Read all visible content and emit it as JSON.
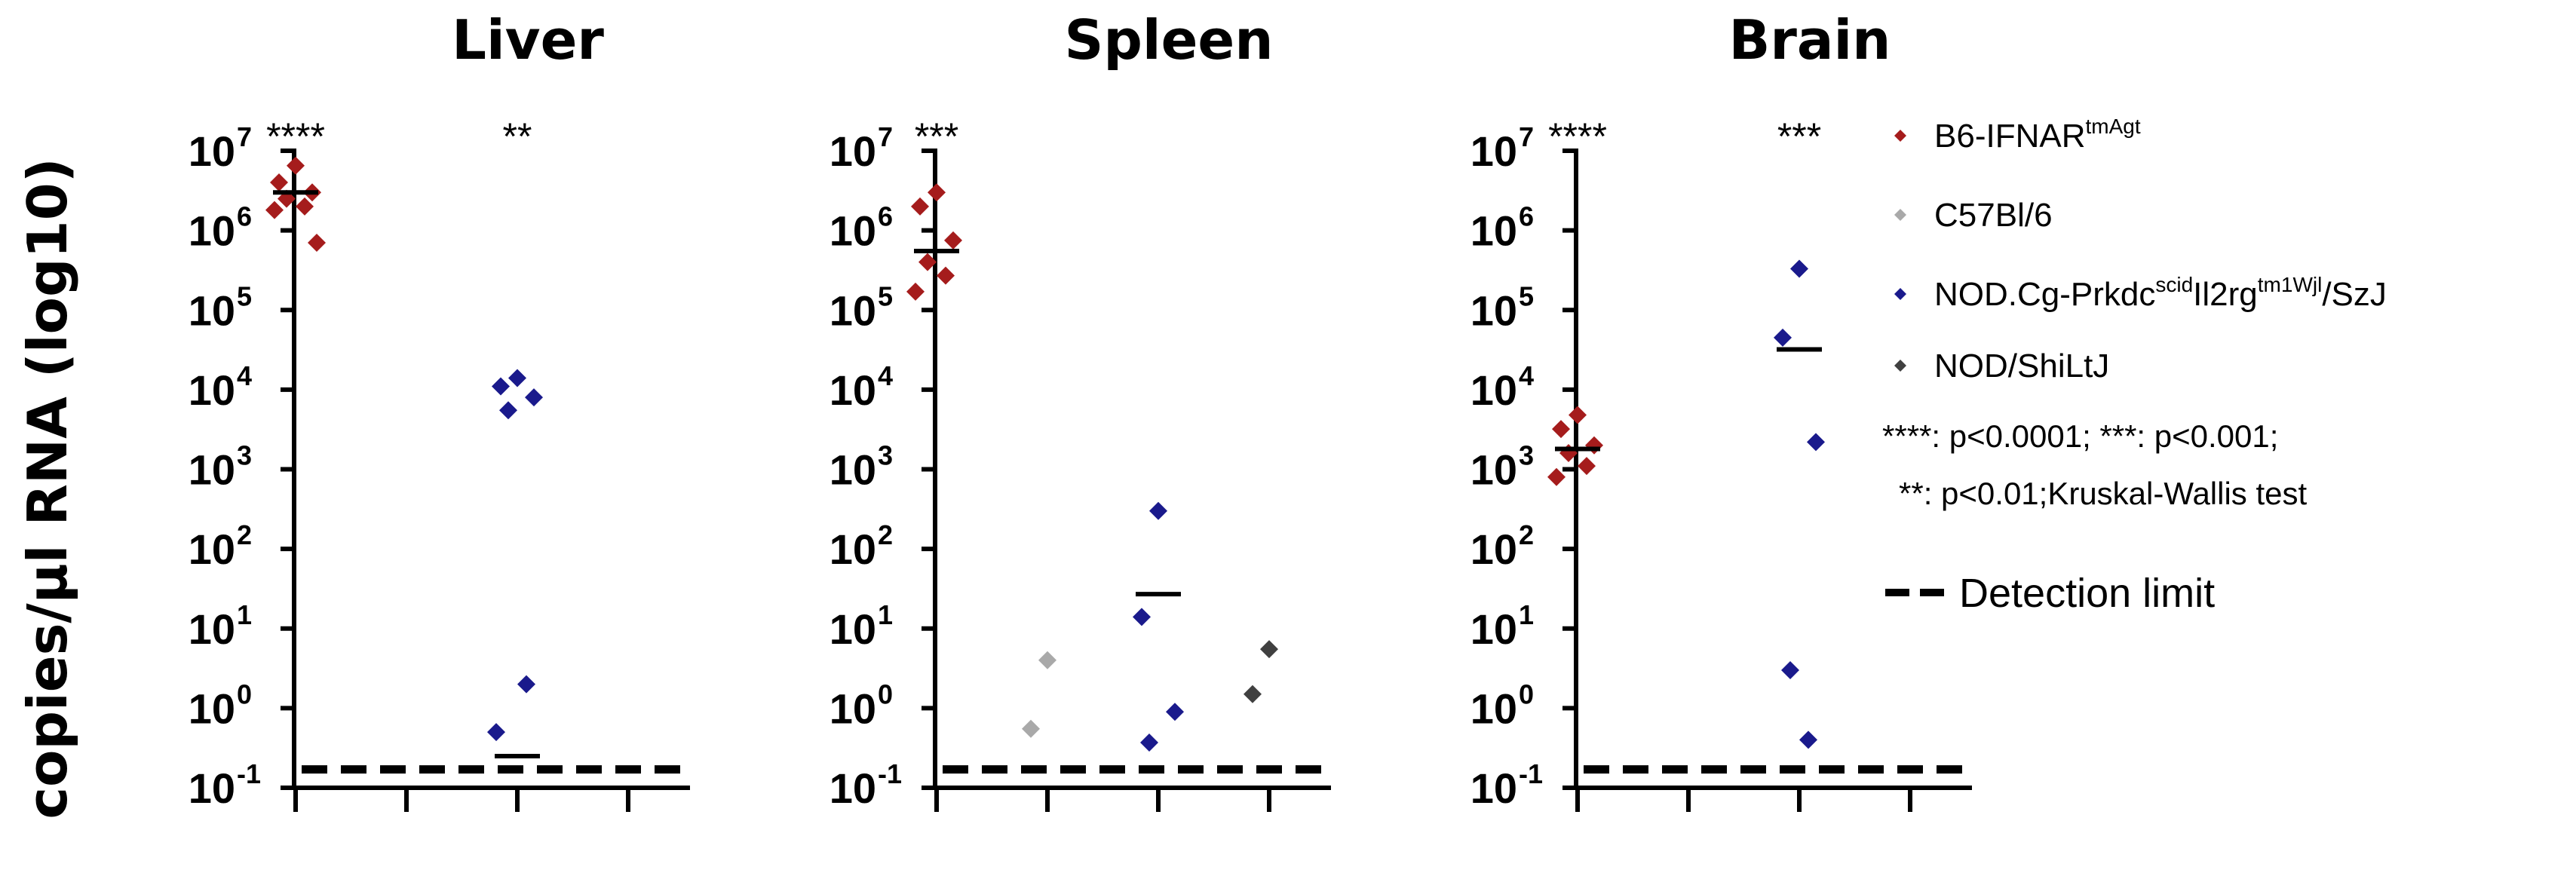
{
  "chart_data": [
    {
      "type": "scatter",
      "title": "Liver",
      "ylabel": "copies/µl RNA (log10)",
      "yscale": "log",
      "ylim": [
        0.1,
        10000000
      ],
      "yticks": [
        0.1,
        1,
        10,
        100,
        1000,
        10000,
        100000,
        1000000,
        10000000
      ],
      "ytick_labels": [
        {
          "base": "10",
          "exp": "-1"
        },
        {
          "base": "10",
          "exp": "0"
        },
        {
          "base": "10",
          "exp": "1"
        },
        {
          "base": "10",
          "exp": "2"
        },
        {
          "base": "10",
          "exp": "3"
        },
        {
          "base": "10",
          "exp": "4"
        },
        {
          "base": "10",
          "exp": "5"
        },
        {
          "base": "10",
          "exp": "6"
        },
        {
          "base": "10",
          "exp": "7"
        }
      ],
      "detection_limit": 0.17,
      "groups": [
        {
          "series": "B6-IFNAR",
          "points": [
            6500000,
            4000000,
            3000000,
            2500000,
            2000000,
            1800000,
            700000
          ],
          "median": 3000000,
          "significance": "****"
        },
        {
          "series": "C57Bl/6",
          "points": [],
          "median": null,
          "significance": ""
        },
        {
          "series": "NOD.Cg-Prkdc",
          "points": [
            14000,
            11000,
            8000,
            5500,
            2,
            0.5
          ],
          "median": 0.25,
          "significance": "**"
        },
        {
          "series": "NOD/ShiLtJ",
          "points": [],
          "median": null,
          "significance": ""
        }
      ]
    },
    {
      "type": "scatter",
      "title": "Spleen",
      "yscale": "log",
      "ylim": [
        0.1,
        10000000
      ],
      "yticks": [
        0.1,
        1,
        10,
        100,
        1000,
        10000,
        100000,
        1000000,
        10000000
      ],
      "ytick_labels": [
        {
          "base": "10",
          "exp": "-1"
        },
        {
          "base": "10",
          "exp": "0"
        },
        {
          "base": "10",
          "exp": "1"
        },
        {
          "base": "10",
          "exp": "2"
        },
        {
          "base": "10",
          "exp": "3"
        },
        {
          "base": "10",
          "exp": "4"
        },
        {
          "base": "10",
          "exp": "5"
        },
        {
          "base": "10",
          "exp": "6"
        },
        {
          "base": "10",
          "exp": "7"
        }
      ],
      "detection_limit": 0.17,
      "groups": [
        {
          "series": "B6-IFNAR",
          "points": [
            3000000,
            2000000,
            750000,
            400000,
            270000,
            170000
          ],
          "median": 550000,
          "significance": "***"
        },
        {
          "series": "C57Bl/6",
          "points": [
            4,
            0.55
          ],
          "median": null,
          "significance": ""
        },
        {
          "series": "NOD.Cg-Prkdc",
          "points": [
            300,
            14,
            0.9,
            0.37
          ],
          "median": 27,
          "significance": ""
        },
        {
          "series": "NOD/ShiLtJ",
          "points": [
            5.5,
            1.5
          ],
          "median": null,
          "significance": ""
        }
      ]
    },
    {
      "type": "scatter",
      "title": "Brain",
      "yscale": "log",
      "ylim": [
        0.1,
        10000000
      ],
      "yticks": [
        0.1,
        1,
        10,
        100,
        1000,
        10000,
        100000,
        1000000,
        10000000
      ],
      "ytick_labels": [
        {
          "base": "10",
          "exp": "-1"
        },
        {
          "base": "10",
          "exp": "0"
        },
        {
          "base": "10",
          "exp": "1"
        },
        {
          "base": "10",
          "exp": "2"
        },
        {
          "base": "10",
          "exp": "3"
        },
        {
          "base": "10",
          "exp": "4"
        },
        {
          "base": "10",
          "exp": "5"
        },
        {
          "base": "10",
          "exp": "6"
        },
        {
          "base": "10",
          "exp": "7"
        }
      ],
      "detection_limit": 0.17,
      "groups": [
        {
          "series": "B6-IFNAR",
          "points": [
            4800,
            3200,
            2000,
            1600,
            1100,
            800
          ],
          "median": 1800,
          "significance": "****"
        },
        {
          "series": "C57Bl/6",
          "points": [],
          "median": null,
          "significance": ""
        },
        {
          "series": "NOD.Cg-Prkdc",
          "points": [
            330000,
            45000,
            2200,
            3,
            0.4
          ],
          "median": 32000,
          "significance": "***"
        },
        {
          "series": "NOD/ShiLtJ",
          "points": [],
          "median": null,
          "significance": ""
        }
      ]
    }
  ],
  "series": [
    {
      "name": "B6-IFNAR",
      "sup": "tmAgt",
      "suffix": "",
      "color": "#a51c1c"
    },
    {
      "name": "C57Bl/6",
      "sup": "",
      "suffix": "",
      "color": "#a9a9a9"
    },
    {
      "name": "NOD.Cg-Prkdc",
      "sup": "scid",
      "name2": "Il2rg",
      "sup2": "tm1Wjl",
      "suffix": "/SzJ",
      "color": "#1a1a8c"
    },
    {
      "name": "NOD/ShiLtJ",
      "sup": "",
      "suffix": "",
      "color": "#404040"
    }
  ],
  "legend": {
    "placement": "right",
    "note_line1": "****: p<0.0001; ***: p<0.001;",
    "note_line2": "**: p<0.01;Kruskal-Wallis test",
    "detection_label": "Detection limit"
  }
}
